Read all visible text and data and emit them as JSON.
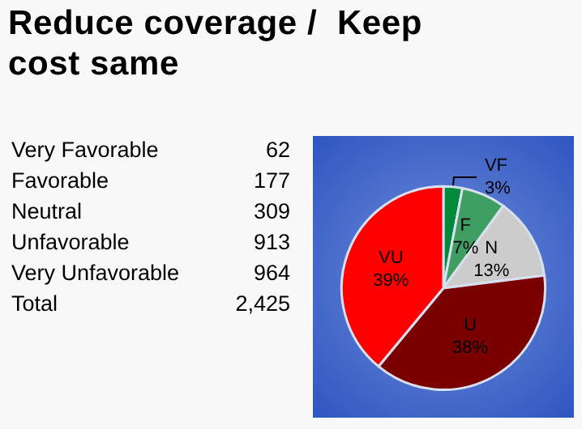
{
  "chart_data": [
    {
      "type": "other",
      "title": "Reduce coverage /  Keep cost same",
      "annotations": [
        "Very Favorable",
        "62",
        "Favorable",
        "177",
        "Neutral",
        "309",
        "Unfavorable",
        "913",
        "Very Unfavorable",
        "964",
        "Total",
        "2,425"
      ]
    },
    {
      "type": "pie",
      "categories": [
        "VF",
        "F",
        "N",
        "U",
        "VU"
      ],
      "values": [
        3,
        7,
        13,
        38,
        39
      ],
      "colors": [
        "#008a3a",
        "#3f9e62",
        "#cccccc",
        "#7a0000",
        "#ff0000"
      ],
      "value_labels": [
        "3%",
        "7%",
        "13%",
        "38%",
        "39%"
      ]
    }
  ]
}
